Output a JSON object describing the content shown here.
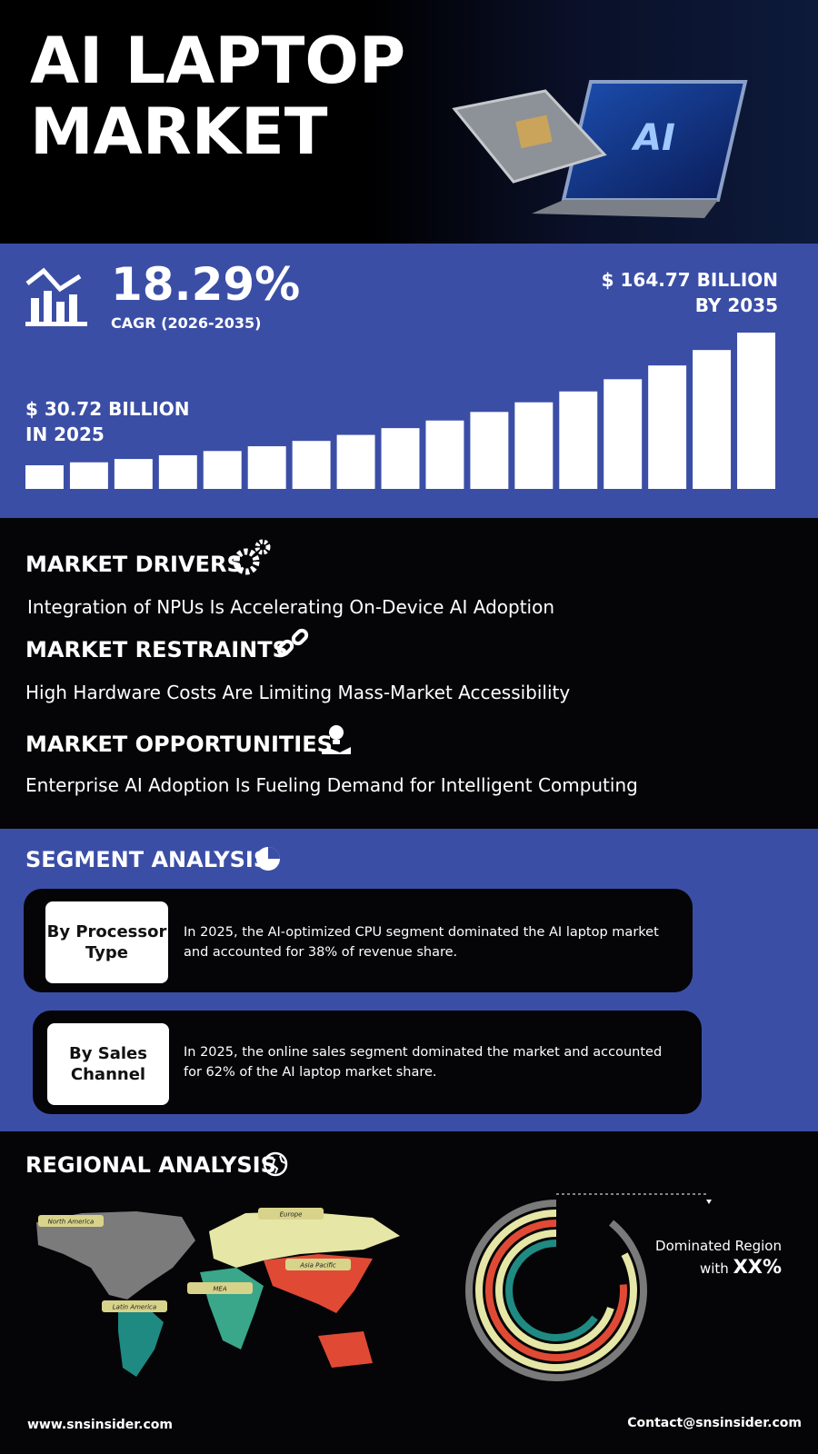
{
  "header": {
    "title": [
      "AI LAPTOP",
      "MARKET"
    ]
  },
  "growth": {
    "cagr": "18.29%",
    "cagr_label": "CAGR (2026-2035)",
    "end_value": [
      "$ 164.77 BILLION",
      "BY 2035"
    ],
    "start_value": [
      "$ 30.72 BILLION",
      "IN 2025"
    ]
  },
  "drivers": {
    "heading": "MARKET DRIVERS",
    "text": "Integration of NPUs Is Accelerating On-Device AI Adoption"
  },
  "restraints": {
    "heading": "MARKET RESTRAINTS",
    "text": "High Hardware Costs Are Limiting Mass-Market Accessibility"
  },
  "opportunities": {
    "heading": "MARKET OPPORTUNITIES",
    "text": "Enterprise AI Adoption Is Fueling Demand for Intelligent Computing"
  },
  "segments": {
    "heading": "SEGMENT ANALYSIS",
    "items": [
      {
        "label": [
          "By Processor",
          "Type"
        ],
        "text": "In 2025, the AI-optimized CPU segment dominated the AI laptop market and accounted for 38% of revenue share."
      },
      {
        "label": [
          "By Sales",
          "Channel"
        ],
        "text": "In 2025, the online sales segment dominated the market and accounted for 62% of the AI laptop market share."
      }
    ]
  },
  "regional": {
    "heading": "REGIONAL ANALYSIS",
    "regions": [
      "North America",
      "Europe",
      "Asia Pacific",
      "MEA",
      "Latin America"
    ],
    "dominated": [
      "Dominated Region",
      "with"
    ],
    "dominated_value": "XX%"
  },
  "footer": {
    "website": "www.snsinsider.com",
    "contact": "Contact@snsinsider.com"
  }
}
